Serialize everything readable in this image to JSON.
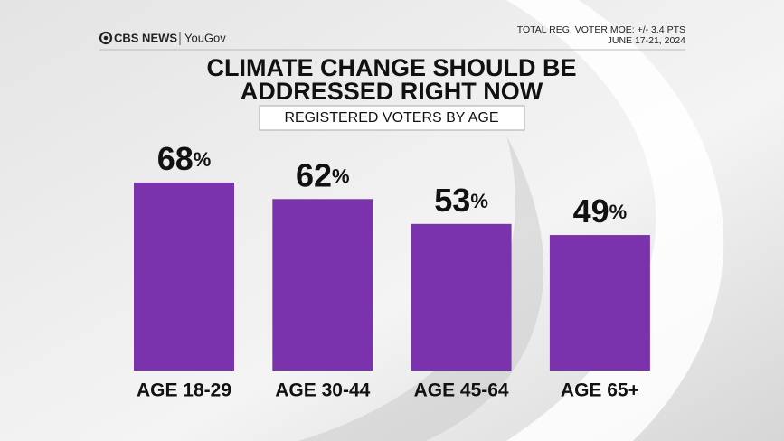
{
  "brand": {
    "network": "CBS NEWS",
    "partner": "YouGov"
  },
  "notes": [
    "TOTAL REG. VOTER MOE: +/- 3.4 PTS",
    "JUNE 17-21, 2024"
  ],
  "chart_data": {
    "type": "bar",
    "title": [
      "CLIMATE CHANGE SHOULD BE",
      "ADDRESSED RIGHT NOW"
    ],
    "subtitle": "REGISTERED VOTERS BY AGE",
    "categories": [
      "AGE 18-29",
      "AGE 30-44",
      "AGE 45-64",
      "AGE 65+"
    ],
    "values": [
      68,
      62,
      53,
      49
    ],
    "value_labels": [
      "68%",
      "62%",
      "53%",
      "49%"
    ],
    "color": "#7a33ad"
  }
}
